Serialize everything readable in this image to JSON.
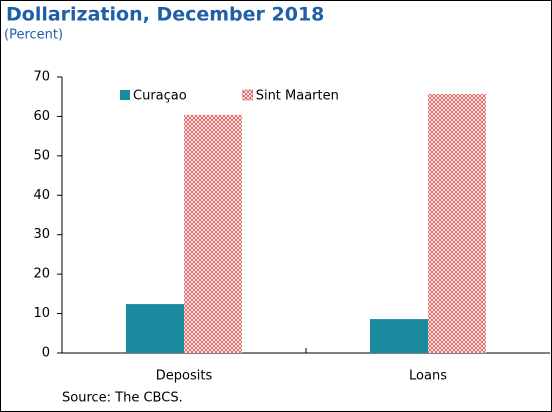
{
  "chart_data": {
    "type": "bar",
    "title": "Dollarization, December 2018",
    "subtitle": "(Percent)",
    "source": "Source: The CBCS.",
    "categories": [
      "Deposits",
      "Loans"
    ],
    "series": [
      {
        "name": "Curaçao",
        "color": "#1a8a9e",
        "values": [
          12.4,
          8.6
        ]
      },
      {
        "name": "Sint Maarten",
        "color": "#e05a5a",
        "pattern": "crosshatch",
        "values": [
          60.4,
          65.7
        ]
      }
    ],
    "ylim": [
      0,
      70
    ],
    "yticks": [
      0,
      10,
      20,
      30,
      40,
      50,
      60,
      70
    ],
    "legend": "top-left"
  }
}
